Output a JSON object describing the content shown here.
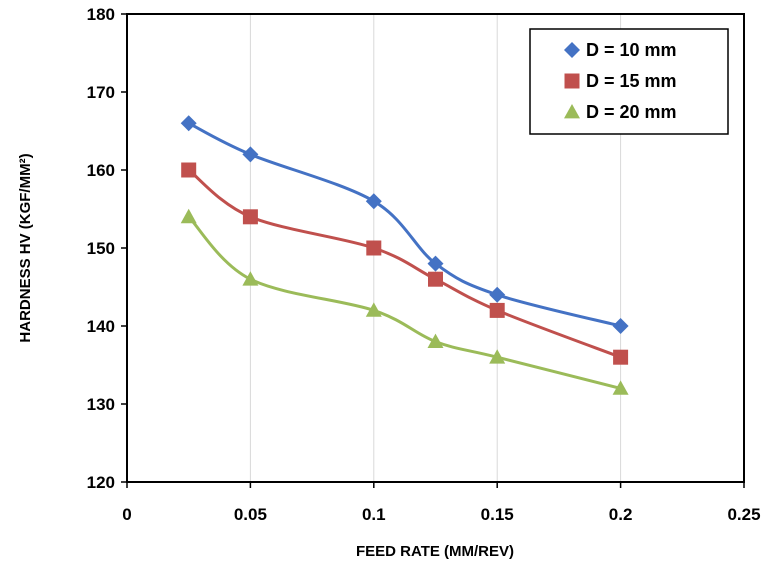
{
  "chart_data": {
    "type": "line",
    "xlabel": "FEED RATE (MM/REV)",
    "ylabel": "HARDNESS HV (KGF/MM²)",
    "xlim": [
      0,
      0.25
    ],
    "ylim": [
      120,
      180
    ],
    "x_ticks": [
      0,
      0.05,
      0.1,
      0.15,
      0.2,
      0.25
    ],
    "x_tick_labels": [
      "0",
      "0.05",
      "0.1",
      "0.15",
      "0.2",
      "0.25"
    ],
    "y_ticks": [
      120,
      130,
      140,
      150,
      160,
      170,
      180
    ],
    "y_tick_labels": [
      "120",
      "130",
      "140",
      "150",
      "160",
      "170",
      "180"
    ],
    "grid": "vertical",
    "smooth": true,
    "legend_position": "top-right",
    "x": [
      0.025,
      0.05,
      0.1,
      0.125,
      0.15,
      0.2
    ],
    "series": [
      {
        "name": "D = 10 mm",
        "marker": "diamond",
        "color": "#4472C4",
        "values": [
          166,
          162,
          156,
          148,
          144,
          140
        ]
      },
      {
        "name": "D = 15 mm",
        "marker": "square",
        "color": "#C0504D",
        "values": [
          160,
          154,
          150,
          146,
          142,
          136
        ]
      },
      {
        "name": "D = 20 mm",
        "marker": "triangle",
        "color": "#9BBB59",
        "values": [
          154,
          146,
          142,
          138,
          136,
          132
        ]
      }
    ]
  }
}
